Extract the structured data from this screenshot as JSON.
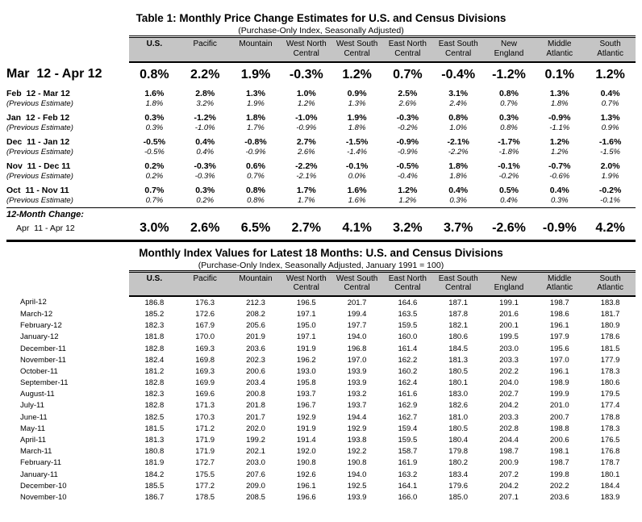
{
  "colors": {
    "page_bg": "#ffffff",
    "header_bg": "#c5c5c5",
    "text": "#000000"
  },
  "table1": {
    "title": "Table 1: Monthly Price Change Estimates for U.S. and Census Divisions",
    "subtitle": "(Purchase-Only Index, Seasonally Adjusted)",
    "columns": [
      "U.S.",
      "Pacific",
      "Mountain",
      "West North\nCentral",
      "West South\nCentral",
      "East North\nCentral",
      "East South\nCentral",
      "New\nEngland",
      "Middle\nAtlantic",
      "South\nAtlantic"
    ],
    "current_row": {
      "label": "Mar  12 - Apr 12",
      "values": [
        "0.8%",
        "2.2%",
        "1.9%",
        "-0.3%",
        "1.2%",
        "0.7%",
        "-0.4%",
        "-1.2%",
        "0.1%",
        "1.2%"
      ]
    },
    "previous_label": "(Previous Estimate)",
    "rows": [
      {
        "label": "Feb  12 - Mar 12",
        "values": [
          "1.6%",
          "2.8%",
          "1.3%",
          "1.0%",
          "0.9%",
          "2.5%",
          "3.1%",
          "0.8%",
          "1.3%",
          "0.4%"
        ],
        "previous": [
          "1.8%",
          "3.2%",
          "1.9%",
          "1.2%",
          "1.3%",
          "2.6%",
          "2.4%",
          "0.7%",
          "1.8%",
          "0.7%"
        ]
      },
      {
        "label": "Jan  12 - Feb 12",
        "values": [
          "0.3%",
          "-1.2%",
          "1.8%",
          "-1.0%",
          "1.9%",
          "-0.3%",
          "0.8%",
          "0.3%",
          "-0.9%",
          "1.3%"
        ],
        "previous": [
          "0.3%",
          "-1.0%",
          "1.7%",
          "-0.9%",
          "1.8%",
          "-0.2%",
          "1.0%",
          "0.8%",
          "-1.1%",
          "0.9%"
        ]
      },
      {
        "label": "Dec  11 - Jan 12",
        "values": [
          "-0.5%",
          "0.4%",
          "-0.8%",
          "2.7%",
          "-1.5%",
          "-0.9%",
          "-2.1%",
          "-1.7%",
          "1.2%",
          "-1.6%"
        ],
        "previous": [
          "-0.5%",
          "0.4%",
          "-0.9%",
          "2.6%",
          "-1.4%",
          "-0.9%",
          "-2.2%",
          "-1.8%",
          "1.2%",
          "-1.5%"
        ]
      },
      {
        "label": "Nov  11 - Dec 11",
        "values": [
          "0.2%",
          "-0.3%",
          "0.6%",
          "-2.2%",
          "-0.1%",
          "-0.5%",
          "1.8%",
          "-0.1%",
          "-0.7%",
          "2.0%"
        ],
        "previous": [
          "0.2%",
          "-0.3%",
          "0.7%",
          "-2.1%",
          "0.0%",
          "-0.4%",
          "1.8%",
          "-0.2%",
          "-0.6%",
          "1.9%"
        ]
      },
      {
        "label": "Oct  11 - Nov 11",
        "values": [
          "0.7%",
          "0.3%",
          "0.8%",
          "1.7%",
          "1.6%",
          "1.2%",
          "0.4%",
          "0.5%",
          "0.4%",
          "-0.2%"
        ],
        "previous": [
          "0.7%",
          "0.2%",
          "0.8%",
          "1.7%",
          "1.6%",
          "1.2%",
          "0.3%",
          "0.4%",
          "0.3%",
          "-0.1%"
        ]
      }
    ],
    "twelve_month_section_label": "12-Month Change:",
    "twelve_month_row": {
      "label": "Apr  11 - Apr 12",
      "values": [
        "3.0%",
        "2.6%",
        "6.5%",
        "2.7%",
        "4.1%",
        "3.2%",
        "3.7%",
        "-2.6%",
        "-0.9%",
        "4.2%"
      ]
    }
  },
  "table2": {
    "title": "Monthly Index Values for Latest 18 Months: U.S. and Census Divisions",
    "subtitle": "(Purchase-Only Index, Seasonally Adjusted, January 1991 = 100)",
    "columns": [
      "U.S.",
      "Pacific",
      "Mountain",
      "West North\nCentral",
      "West South\nCentral",
      "East North\nCentral",
      "East South\nCentral",
      "New\nEngland",
      "Middle\nAtlantic",
      "South\nAtlantic"
    ],
    "rows": [
      {
        "label": "April-12",
        "values": [
          "186.8",
          "176.3",
          "212.3",
          "196.5",
          "201.7",
          "164.6",
          "187.1",
          "199.1",
          "198.7",
          "183.8"
        ]
      },
      {
        "label": "March-12",
        "values": [
          "185.2",
          "172.6",
          "208.2",
          "197.1",
          "199.4",
          "163.5",
          "187.8",
          "201.6",
          "198.6",
          "181.7"
        ]
      },
      {
        "label": "February-12",
        "values": [
          "182.3",
          "167.9",
          "205.6",
          "195.0",
          "197.7",
          "159.5",
          "182.1",
          "200.1",
          "196.1",
          "180.9"
        ]
      },
      {
        "label": "January-12",
        "values": [
          "181.8",
          "170.0",
          "201.9",
          "197.1",
          "194.0",
          "160.0",
          "180.6",
          "199.5",
          "197.9",
          "178.6"
        ]
      },
      {
        "label": "December-11",
        "values": [
          "182.8",
          "169.3",
          "203.6",
          "191.9",
          "196.8",
          "161.4",
          "184.5",
          "203.0",
          "195.6",
          "181.5"
        ]
      },
      {
        "label": "November-11",
        "values": [
          "182.4",
          "169.8",
          "202.3",
          "196.2",
          "197.0",
          "162.2",
          "181.3",
          "203.3",
          "197.0",
          "177.9"
        ]
      },
      {
        "label": "October-11",
        "values": [
          "181.2",
          "169.3",
          "200.6",
          "193.0",
          "193.9",
          "160.2",
          "180.5",
          "202.2",
          "196.1",
          "178.3"
        ]
      },
      {
        "label": "September-11",
        "values": [
          "182.8",
          "169.9",
          "203.4",
          "195.8",
          "193.9",
          "162.4",
          "180.1",
          "204.0",
          "198.9",
          "180.6"
        ]
      },
      {
        "label": "August-11",
        "values": [
          "182.3",
          "169.6",
          "200.8",
          "193.7",
          "193.2",
          "161.6",
          "183.0",
          "202.7",
          "199.9",
          "179.5"
        ]
      },
      {
        "label": "July-11",
        "values": [
          "182.8",
          "171.3",
          "201.8",
          "196.7",
          "193.7",
          "162.9",
          "182.6",
          "204.2",
          "201.0",
          "177.4"
        ]
      },
      {
        "label": "June-11",
        "values": [
          "182.5",
          "170.3",
          "201.7",
          "192.9",
          "194.4",
          "162.7",
          "181.0",
          "203.3",
          "200.7",
          "178.8"
        ]
      },
      {
        "label": "May-11",
        "values": [
          "181.5",
          "171.2",
          "202.0",
          "191.9",
          "192.9",
          "159.4",
          "180.5",
          "202.8",
          "198.8",
          "178.3"
        ]
      },
      {
        "label": "April-11",
        "values": [
          "181.3",
          "171.9",
          "199.2",
          "191.4",
          "193.8",
          "159.5",
          "180.4",
          "204.4",
          "200.6",
          "176.5"
        ]
      },
      {
        "label": "March-11",
        "values": [
          "180.8",
          "171.9",
          "202.1",
          "192.0",
          "192.2",
          "158.7",
          "179.8",
          "198.7",
          "198.1",
          "176.8"
        ]
      },
      {
        "label": "February-11",
        "values": [
          "181.9",
          "172.7",
          "203.0",
          "190.8",
          "190.8",
          "161.9",
          "180.2",
          "200.9",
          "198.7",
          "178.7"
        ]
      },
      {
        "label": "January-11",
        "values": [
          "184.2",
          "175.5",
          "207.6",
          "192.6",
          "194.0",
          "163.2",
          "183.4",
          "207.2",
          "199.8",
          "180.1"
        ]
      },
      {
        "label": "December-10",
        "values": [
          "185.5",
          "177.2",
          "209.0",
          "196.1",
          "192.5",
          "164.1",
          "179.6",
          "204.2",
          "202.2",
          "184.4"
        ]
      },
      {
        "label": "November-10",
        "values": [
          "186.7",
          "178.5",
          "208.5",
          "196.6",
          "193.9",
          "166.0",
          "185.0",
          "207.1",
          "203.6",
          "183.9"
        ]
      }
    ]
  }
}
